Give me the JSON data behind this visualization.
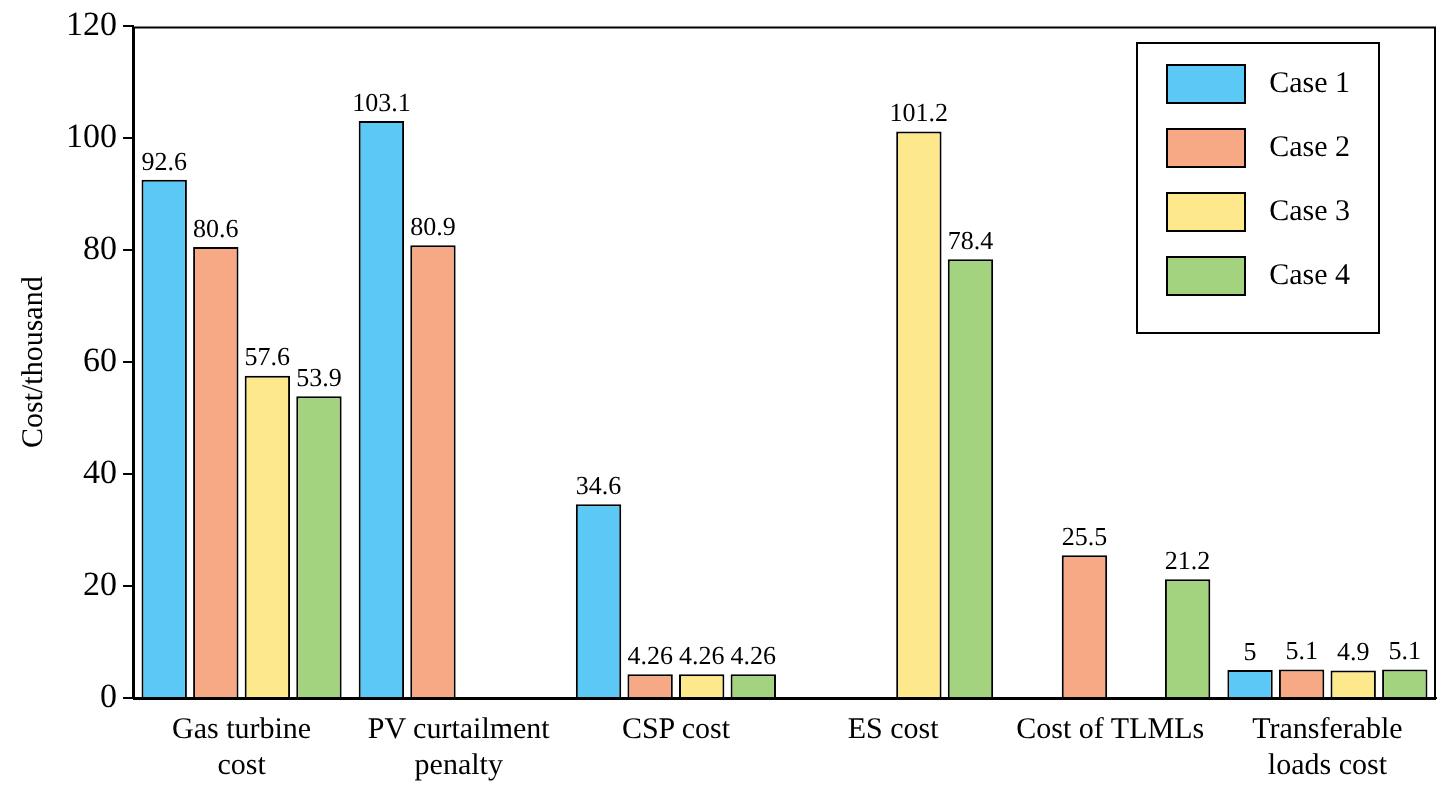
{
  "chart_data": {
    "type": "bar",
    "ylabel": "Cost/thousand",
    "categories": [
      "Gas turbine cost",
      "PV curtailment penalty",
      "CSP cost",
      "ES cost",
      "Cost of TLMLs",
      "Transferable loads cost"
    ],
    "series": [
      {
        "name": "Case 1",
        "color": "#5bc8f5",
        "values": [
          92.6,
          103.1,
          34.6,
          null,
          null,
          5
        ]
      },
      {
        "name": "Case 2",
        "color": "#f7a884",
        "values": [
          80.6,
          80.9,
          4.26,
          null,
          25.5,
          5.1
        ]
      },
      {
        "name": "Case 3",
        "color": "#fde88c",
        "values": [
          57.6,
          null,
          4.26,
          101.2,
          null,
          4.9
        ]
      },
      {
        "name": "Case 4",
        "color": "#a3d37f",
        "values": [
          53.9,
          null,
          4.26,
          78.4,
          21.2,
          5.1
        ]
      }
    ],
    "ylim": [
      0,
      120
    ],
    "yticks": [
      0,
      20,
      40,
      60,
      80,
      100,
      120
    ],
    "grid": false,
    "legend": "top right",
    "data_labels": true
  }
}
